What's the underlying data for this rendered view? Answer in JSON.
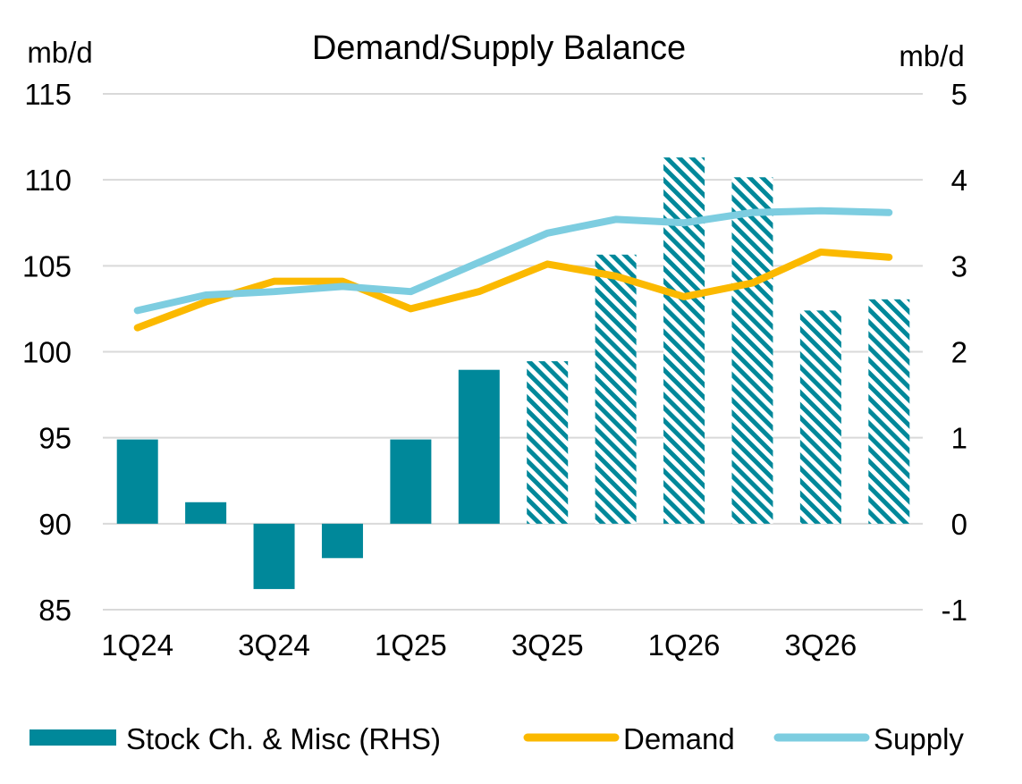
{
  "chart_data": {
    "type": "bar+line",
    "title": "Demand/Supply Balance",
    "ylabel_left": "mb/d",
    "ylabel_right": "mb/d",
    "ylim_left": [
      85,
      115
    ],
    "yticks_left": [
      115,
      110,
      105,
      100,
      95,
      90,
      85
    ],
    "ylim_right": [
      -1,
      5
    ],
    "yticks_right": [
      5,
      4,
      3,
      2,
      1,
      0,
      -1
    ],
    "categories": [
      "1Q24",
      "2Q24",
      "3Q24",
      "4Q24",
      "1Q25",
      "2Q25",
      "3Q25",
      "4Q25",
      "1Q26",
      "2Q26",
      "3Q26",
      "4Q26"
    ],
    "xtick_labels": [
      "1Q24",
      "3Q24",
      "1Q25",
      "3Q25",
      "1Q26",
      "3Q26"
    ],
    "forecast_start_index": 6,
    "grid": true,
    "legend_position": "bottom",
    "series": [
      {
        "name": "Stock Ch. & Misc (RHS)",
        "type": "bar",
        "axis": "right",
        "color": "#00889a",
        "values": [
          0.98,
          0.25,
          -0.76,
          -0.4,
          0.98,
          1.79,
          1.89,
          3.13,
          4.26,
          4.03,
          2.48,
          2.61
        ]
      },
      {
        "name": "Demand",
        "type": "line",
        "axis": "left",
        "color": "#fbb900",
        "values": [
          101.4,
          102.9,
          104.1,
          104.1,
          102.5,
          103.5,
          105.1,
          104.4,
          103.2,
          104.0,
          105.8,
          105.5
        ]
      },
      {
        "name": "Supply",
        "type": "line",
        "axis": "left",
        "color": "#7dcde0",
        "values": [
          102.4,
          103.3,
          103.5,
          103.8,
          103.5,
          105.2,
          106.9,
          107.7,
          107.5,
          108.1,
          108.2,
          108.1
        ]
      }
    ]
  }
}
